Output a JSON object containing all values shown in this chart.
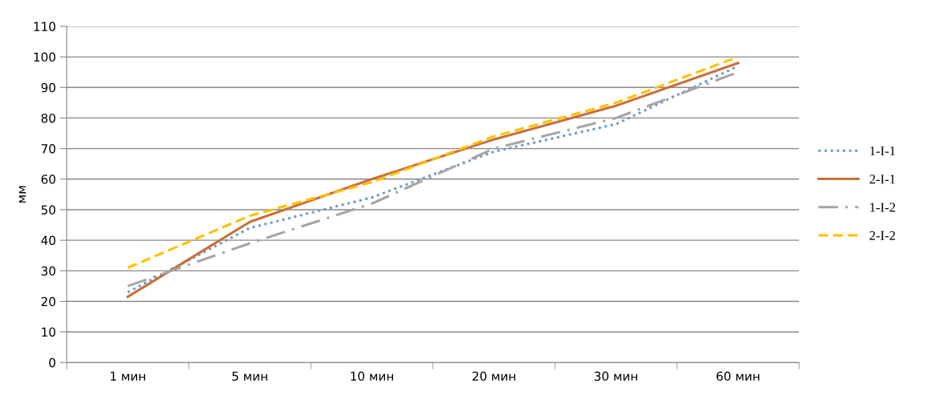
{
  "chart_data": {
    "type": "line",
    "ylabel": "мм",
    "categories": [
      "1 мин",
      "5 мин",
      "10 мин",
      "20 мин",
      "30 мин",
      "60 мин"
    ],
    "series": [
      {
        "name": "1-I-1",
        "color": "#6f9cc4",
        "line_style": "dotted",
        "values": [
          23,
          44,
          54,
          69,
          78,
          97
        ]
      },
      {
        "name": "2-I-1",
        "color": "#c8703a",
        "line_style": "solid",
        "values": [
          21.5,
          46,
          60,
          73,
          84,
          98
        ]
      },
      {
        "name": "1-I-2",
        "color": "#a5a5a5",
        "line_style": "dashdot",
        "values": [
          25,
          39,
          52,
          70,
          80,
          95
        ]
      },
      {
        "name": "2-I-2",
        "color": "#ffc000",
        "line_style": "dashed",
        "values": [
          31,
          48,
          59,
          74,
          85,
          100
        ]
      }
    ],
    "ylim": [
      0,
      110
    ],
    "yticks": [
      0,
      10,
      20,
      30,
      40,
      50,
      60,
      70,
      80,
      90,
      100,
      110
    ],
    "grid": "y",
    "legend": "right",
    "marker": "none"
  }
}
